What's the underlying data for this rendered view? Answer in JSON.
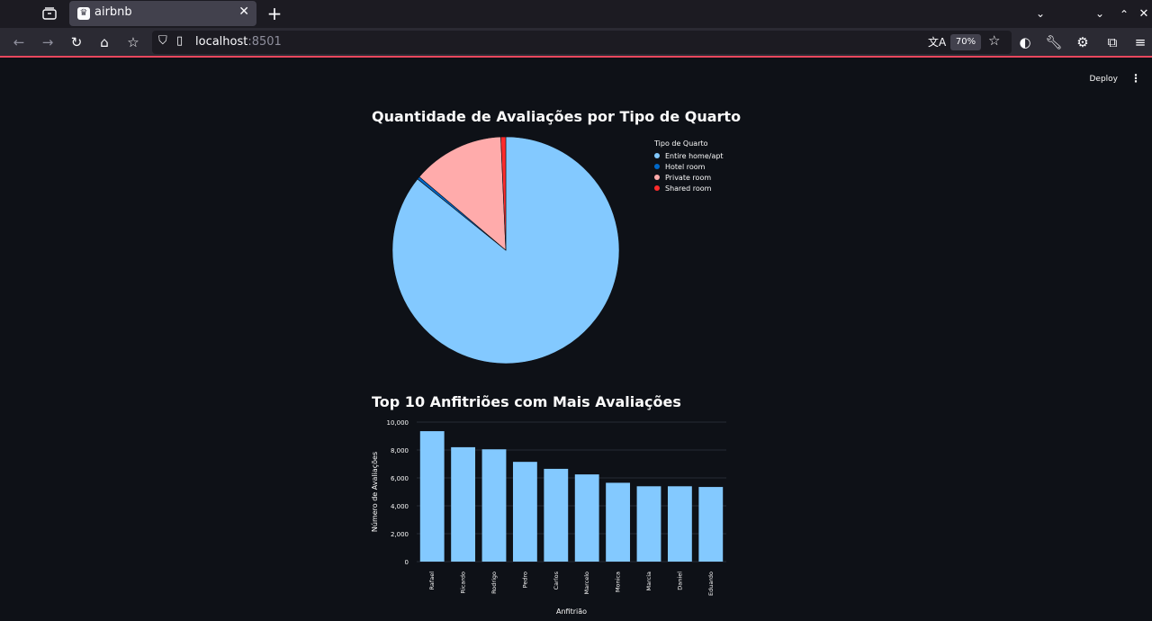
{
  "browser": {
    "tab_title": "airbnb",
    "url_host": "localhost",
    "url_port": ":8501",
    "zoom": "70%",
    "accent": "#e8475d"
  },
  "app": {
    "deploy_label": "Deploy"
  },
  "pie": {
    "title": "Quantidade de Avaliações por Tipo de Quarto",
    "legend_title": "Tipo de Quarto",
    "chart_data": {
      "type": "pie",
      "title": "Quantidade de Avaliações por Tipo de Quarto",
      "legend_title": "Tipo de Quarto",
      "labels": [
        "Entire home/apt",
        "Hotel room",
        "Private room",
        "Shared room"
      ],
      "values": [
        85.8,
        0.4,
        13.1,
        0.7
      ],
      "colors": [
        "#83c9ff",
        "#0068c9",
        "#ffabab",
        "#ff2b2b"
      ],
      "legend_position": "top-right"
    }
  },
  "bar": {
    "title": "Top 10 Anfitriões com Mais Avaliações",
    "chart_data": {
      "type": "bar",
      "title": "Top 10 Anfitriões com Mais Avaliações",
      "categories": [
        "Rafael",
        "Ricardo",
        "Rodrigo",
        "Pedro",
        "Carlos",
        "Marcelo",
        "Monica",
        "Marcia",
        "Daniel",
        "Eduardo"
      ],
      "values": [
        9350,
        8200,
        8050,
        7150,
        6650,
        6250,
        5650,
        5400,
        5400,
        5350
      ],
      "xlabel": "Anfitrião",
      "ylabel": "Número de Avaliações",
      "ylim": [
        0,
        10000
      ],
      "yticks": [
        "0",
        "2,000",
        "4,000",
        "6,000",
        "8,000",
        "10,000"
      ],
      "color": "#83c9ff",
      "grid": true
    }
  }
}
